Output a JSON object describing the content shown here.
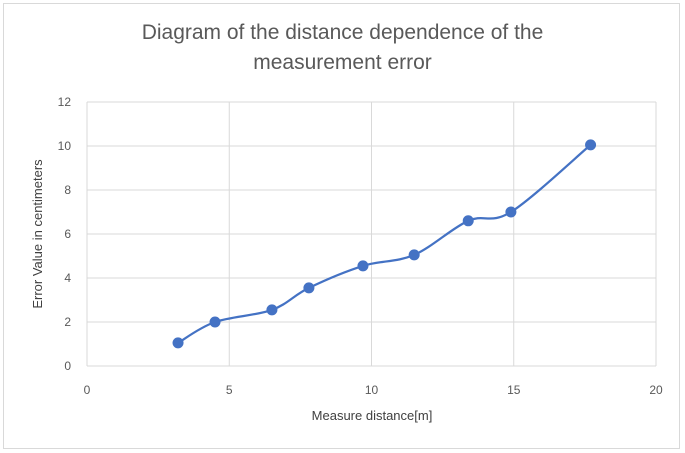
{
  "chart_data": {
    "type": "scatter",
    "title_lines": [
      "Diagram of the distance dependence of the",
      "measurement error"
    ],
    "xlabel": "Measure distance[m]",
    "ylabel": "Error Value in centimeters",
    "xlim": [
      0,
      20
    ],
    "ylim": [
      0,
      12
    ],
    "xticks": [
      0,
      5,
      10,
      15,
      20
    ],
    "yticks": [
      0,
      2,
      4,
      6,
      8,
      10,
      12
    ],
    "grid": true,
    "smooth_line": true,
    "color": "#4472C4",
    "series": [
      {
        "x": [
          3.2,
          4.5,
          6.5,
          7.8,
          9.7,
          11.5,
          13.4,
          14.9,
          17.7
        ],
        "y": [
          1.05,
          2.0,
          2.55,
          3.55,
          4.55,
          5.05,
          6.6,
          7.0,
          10.05
        ]
      }
    ]
  }
}
